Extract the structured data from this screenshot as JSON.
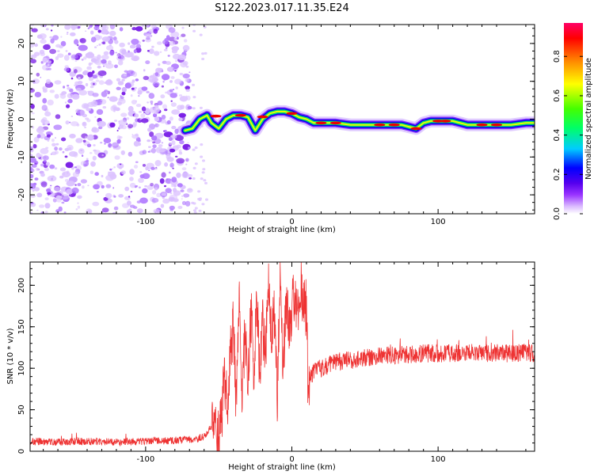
{
  "title": "S122.2023.017.11.35.E24",
  "chart_data": [
    {
      "type": "heatmap",
      "xlabel": "Height of straight line (km)",
      "ylabel": "Frequency (Hz)",
      "xlim": [
        -179,
        166
      ],
      "ylim": [
        -25,
        25
      ],
      "x_ticks": [
        -100,
        0,
        100
      ],
      "y_ticks": [
        -20,
        -10,
        0,
        10,
        20
      ],
      "grid": false,
      "colorbar": {
        "label": "Normalized spectral amplitude",
        "range": [
          0,
          0.97
        ],
        "ticks": [
          0.0,
          0.2,
          0.4,
          0.6,
          0.8
        ],
        "colors": [
          "#ffffff",
          "#d9b8ff",
          "#9933ff",
          "#5500ee",
          "#0000ff",
          "#00ccff",
          "#00ff66",
          "#44ff00",
          "#ffff00",
          "#ff8800",
          "#ff0000",
          "#ff0066"
        ]
      },
      "ridge": {
        "x": [
          -73,
          -68,
          -63,
          -58,
          -55,
          -50,
          -45,
          -40,
          -35,
          -30,
          -25,
          -20,
          -15,
          -10,
          -5,
          0,
          5,
          10,
          15,
          20,
          30,
          40,
          50,
          60,
          70,
          75,
          80,
          85,
          90,
          95,
          100,
          110,
          120,
          130,
          140,
          150,
          160,
          166
        ],
        "y": [
          -3,
          -2.5,
          0,
          1,
          -1,
          -2.5,
          0,
          1,
          1,
          0.5,
          -3,
          0,
          1.5,
          2,
          2,
          1.5,
          0.5,
          0,
          -1,
          -1,
          -1,
          -1.5,
          -1.5,
          -1.5,
          -1.5,
          -1.5,
          -2,
          -2.5,
          -1,
          -0.5,
          -0.5,
          -0.5,
          -1.5,
          -1.5,
          -1.5,
          -1.5,
          -1,
          -1
        ]
      }
    },
    {
      "type": "line",
      "xlabel": "Height of straight line (km)",
      "ylabel": "SNR (10 * v/v)",
      "xlim": [
        -179,
        166
      ],
      "ylim": [
        0,
        228
      ],
      "x_ticks": [
        -100,
        0,
        100
      ],
      "y_ticks": [
        0,
        50,
        100,
        150,
        200
      ],
      "grid": false,
      "series": [
        {
          "color": "#ee3333",
          "x": [
            -179,
            -160,
            -140,
            -120,
            -100,
            -80,
            -65,
            -60,
            -55,
            -52,
            -50,
            -48,
            -46,
            -44,
            -42,
            -40,
            -38,
            -36,
            -34,
            -32,
            -30,
            -28,
            -26,
            -24,
            -22,
            -20,
            -18,
            -16,
            -14,
            -12,
            -10,
            -8,
            -6,
            -4,
            -2,
            0,
            2,
            4,
            6,
            8,
            9,
            10,
            11,
            12,
            15,
            20,
            30,
            40,
            50,
            60,
            70,
            80,
            90,
            100,
            110,
            120,
            130,
            140,
            150,
            160,
            166
          ],
          "y": [
            12,
            11,
            12,
            11,
            12,
            13,
            15,
            18,
            30,
            25,
            18,
            40,
            90,
            60,
            120,
            150,
            50,
            180,
            60,
            150,
            80,
            170,
            100,
            190,
            90,
            150,
            120,
            200,
            140,
            170,
            60,
            220,
            100,
            180,
            150,
            170,
            190,
            165,
            200,
            180,
            170,
            175,
            80,
            85,
            95,
            100,
            108,
            110,
            112,
            115,
            115,
            117,
            118,
            118,
            118,
            118,
            119,
            118,
            118,
            119,
            118
          ]
        }
      ]
    }
  ]
}
